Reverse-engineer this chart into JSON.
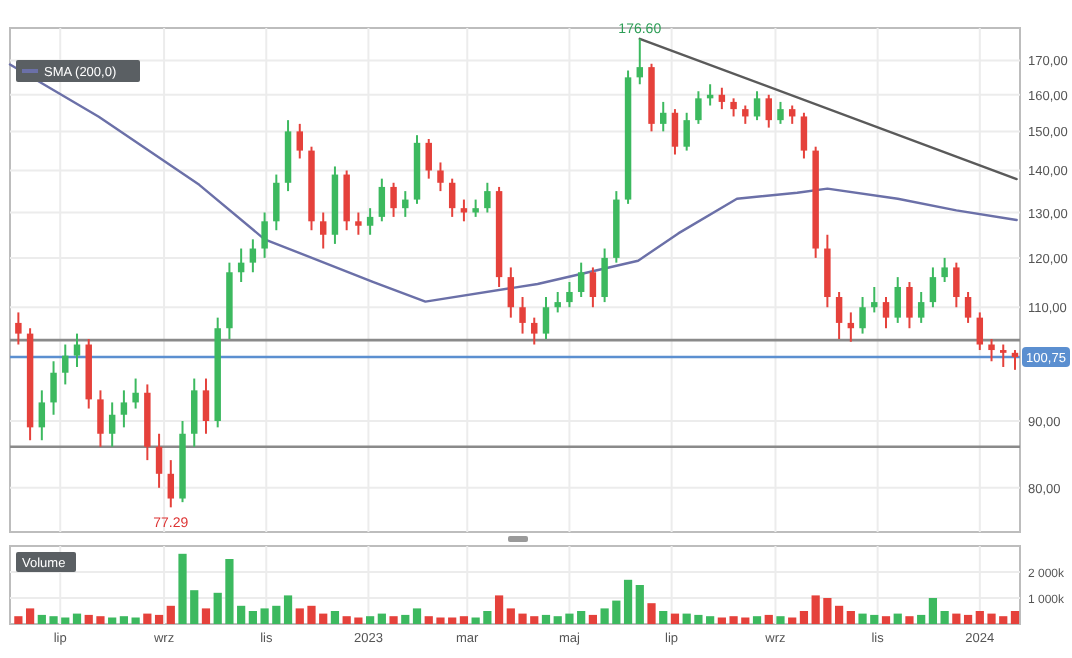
{
  "chart_data": [
    {
      "type": "candlestick",
      "log": true,
      "grid": true,
      "legend": "top left",
      "tick_labels": "y",
      "xlim": [
        "2022-06-01",
        "2024-01-25"
      ],
      "ylim": [
        74,
        180
      ],
      "yticks": [
        {
          "value": 80,
          "label": "80,00"
        },
        {
          "value": 90,
          "label": "90,00"
        },
        {
          "value": 110,
          "label": "110,00"
        },
        {
          "value": 120,
          "label": "120,00"
        },
        {
          "value": 130,
          "label": "130,00"
        },
        {
          "value": 140,
          "label": "140,00"
        },
        {
          "value": 150,
          "label": "150,00"
        },
        {
          "value": 160,
          "label": "160,00"
        },
        {
          "value": 170,
          "label": "170,00"
        }
      ],
      "xticks": [
        {
          "value": "2022-07-01",
          "label": null
        },
        {
          "value": "2022-09-01",
          "label": null
        },
        {
          "value": "2022-11-01",
          "label": null
        },
        {
          "value": "2023-01-01",
          "label": null
        },
        {
          "value": "2023-03-01",
          "label": null
        },
        {
          "value": "2023-05-01",
          "label": null
        },
        {
          "value": "2023-07-01",
          "label": null
        },
        {
          "value": "2023-09-01",
          "label": null
        },
        {
          "value": "2023-11-01",
          "label": null
        },
        {
          "value": "2024-01-01",
          "label": null
        }
      ],
      "colors": [
        "#e5413b",
        "#e5413b",
        "#3cb95f",
        "#3cb95f",
        "#3cb95f",
        "#3cb95f",
        "#e5413b",
        "#e5413b",
        "#3cb95f",
        "#3cb95f",
        "#3cb95f",
        "#e5413b",
        "#e5413b",
        "#e5413b",
        "#3cb95f",
        "#3cb95f",
        "#e5413b",
        "#3cb95f",
        "#3cb95f",
        "#3cb95f",
        "#3cb95f",
        "#3cb95f",
        "#3cb95f",
        "#3cb95f",
        "#e5413b",
        "#e5413b",
        "#e5413b",
        "#3cb95f",
        "#e5413b",
        "#e5413b",
        "#3cb95f",
        "#3cb95f",
        "#e5413b",
        "#3cb95f",
        "#3cb95f",
        "#e5413b",
        "#e5413b",
        "#e5413b",
        "#e5413b",
        "#3cb95f",
        "#3cb95f",
        "#e5413b",
        "#e5413b",
        "#e5413b",
        "#e5413b",
        "#3cb95f",
        "#3cb95f",
        "#3cb95f",
        "#3cb95f",
        "#e5413b",
        "#3cb95f",
        "#3cb95f",
        "#3cb95f",
        "#3cb95f",
        "#e5413b",
        "#3cb95f",
        "#e5413b",
        "#3cb95f",
        "#3cb95f",
        "#3cb95f",
        "#e5413b",
        "#e5413b",
        "#e5413b",
        "#3cb95f",
        "#e5413b",
        "#3cb95f",
        "#e5413b",
        "#e5413b",
        "#e5413b",
        "#e5413b",
        "#e5413b",
        "#e5413b",
        "#3cb95f",
        "#3cb95f",
        "#e5413b",
        "#3cb95f",
        "#e5413b",
        "#3cb95f",
        "#3cb95f",
        "#3cb95f",
        "#e5413b",
        "#e5413b",
        "#e5413b",
        "#e5413b",
        "#e5413b",
        "#e5413b"
      ],
      "x": [
        "2022-06-06",
        "2022-06-13",
        "2022-06-20",
        "2022-06-27",
        "2022-07-04",
        "2022-07-11",
        "2022-07-18",
        "2022-07-25",
        "2022-08-01",
        "2022-08-08",
        "2022-08-15",
        "2022-08-22",
        "2022-08-29",
        "2022-09-05",
        "2022-09-12",
        "2022-09-19",
        "2022-09-26",
        "2022-10-03",
        "2022-10-10",
        "2022-10-17",
        "2022-10-24",
        "2022-10-31",
        "2022-11-07",
        "2022-11-14",
        "2022-11-21",
        "2022-11-28",
        "2022-12-05",
        "2022-12-12",
        "2022-12-19",
        "2022-12-26",
        "2023-01-02",
        "2023-01-09",
        "2023-01-16",
        "2023-01-23",
        "2023-01-30",
        "2023-02-06",
        "2023-02-13",
        "2023-02-20",
        "2023-02-27",
        "2023-03-06",
        "2023-03-13",
        "2023-03-20",
        "2023-03-27",
        "2023-04-03",
        "2023-04-10",
        "2023-04-17",
        "2023-04-24",
        "2023-05-01",
        "2023-05-08",
        "2023-05-15",
        "2023-05-22",
        "2023-05-29",
        "2023-06-05",
        "2023-06-12",
        "2023-06-19",
        "2023-06-26",
        "2023-07-03",
        "2023-07-10",
        "2023-07-17",
        "2023-07-24",
        "2023-07-31",
        "2023-08-07",
        "2023-08-14",
        "2023-08-21",
        "2023-08-28",
        "2023-09-04",
        "2023-09-11",
        "2023-09-18",
        "2023-09-25",
        "2023-10-02",
        "2023-10-09",
        "2023-10-16",
        "2023-10-23",
        "2023-10-30",
        "2023-11-06",
        "2023-11-13",
        "2023-11-20",
        "2023-11-27",
        "2023-12-04",
        "2023-12-11",
        "2023-12-18",
        "2023-12-25",
        "2024-01-01",
        "2024-01-08",
        "2024-01-15",
        "2024-01-22"
      ],
      "ohlc": [
        [
          107,
          109,
          103,
          105
        ],
        [
          105,
          106,
          87,
          89
        ],
        [
          89,
          95,
          87,
          93
        ],
        [
          93,
          100,
          91,
          98
        ],
        [
          98,
          103,
          96,
          101
        ],
        [
          101,
          105,
          99,
          103
        ],
        [
          103,
          104,
          92,
          93.5
        ],
        [
          93.5,
          95,
          86,
          88
        ],
        [
          88,
          93,
          86,
          91
        ],
        [
          91,
          95,
          89,
          93
        ],
        [
          93,
          97,
          92,
          94.6
        ],
        [
          94.6,
          96,
          84,
          86
        ],
        [
          86,
          88,
          80,
          82
        ],
        [
          82,
          84,
          77.29,
          78.5
        ],
        [
          78.5,
          90,
          78,
          88
        ],
        [
          88,
          97,
          86,
          95
        ],
        [
          95,
          97,
          88,
          90
        ],
        [
          90,
          108,
          89,
          106
        ],
        [
          106,
          119,
          104,
          117
        ],
        [
          117,
          122,
          115,
          119
        ],
        [
          119,
          124,
          117,
          122
        ],
        [
          122,
          130,
          120,
          128
        ],
        [
          128,
          139,
          126,
          137
        ],
        [
          137,
          153,
          135,
          150
        ],
        [
          150,
          152,
          143,
          145
        ],
        [
          145,
          146,
          126,
          128
        ],
        [
          128,
          130,
          122,
          125
        ],
        [
          125,
          141,
          123,
          139
        ],
        [
          139,
          140,
          126,
          128
        ],
        [
          128,
          130,
          125,
          127
        ],
        [
          127,
          131,
          125,
          129
        ],
        [
          129,
          138,
          128,
          136
        ],
        [
          136,
          137,
          129,
          131
        ],
        [
          131,
          135,
          129,
          133
        ],
        [
          133,
          149,
          132,
          147
        ],
        [
          147,
          148,
          138,
          140
        ],
        [
          140,
          142,
          135,
          137
        ],
        [
          137,
          138,
          129,
          131
        ],
        [
          131,
          133,
          128,
          130
        ],
        [
          130,
          133,
          129,
          131
        ],
        [
          131,
          137,
          130,
          135
        ],
        [
          135,
          136,
          114,
          116
        ],
        [
          116,
          118,
          108,
          110
        ],
        [
          110,
          112,
          105,
          107
        ],
        [
          107,
          108,
          103,
          105
        ],
        [
          105,
          112,
          104,
          110
        ],
        [
          110,
          113,
          109,
          111
        ],
        [
          111,
          115,
          110,
          113
        ],
        [
          113,
          119,
          112,
          117
        ],
        [
          117,
          118,
          110,
          112
        ],
        [
          112,
          122,
          111,
          120
        ],
        [
          120,
          135,
          119,
          133
        ],
        [
          133,
          167,
          132,
          165
        ],
        [
          165,
          176.6,
          163,
          168
        ],
        [
          168,
          169,
          150,
          152
        ],
        [
          152,
          158,
          150,
          155
        ],
        [
          155,
          156,
          144,
          146
        ],
        [
          146,
          155,
          145,
          153
        ],
        [
          153,
          161,
          152,
          159
        ],
        [
          159,
          163,
          157,
          160
        ],
        [
          160,
          162,
          156,
          158
        ],
        [
          158,
          159,
          154,
          156
        ],
        [
          156,
          157,
          152,
          154
        ],
        [
          154,
          161,
          153,
          159
        ],
        [
          159,
          160,
          151,
          153
        ],
        [
          153,
          158,
          152,
          156
        ],
        [
          156,
          157,
          152,
          154
        ],
        [
          154,
          155,
          143,
          145
        ],
        [
          145,
          146,
          120,
          122
        ],
        [
          122,
          125,
          110,
          112
        ],
        [
          112,
          113,
          104,
          107
        ],
        [
          107,
          109,
          103.5,
          106
        ],
        [
          106,
          112,
          105,
          110
        ],
        [
          110,
          114,
          109,
          111
        ],
        [
          111,
          112,
          106,
          108
        ],
        [
          108,
          116,
          107,
          114
        ],
        [
          114,
          115,
          106,
          108
        ],
        [
          108,
          113,
          107,
          111
        ],
        [
          111,
          118,
          110,
          116
        ],
        [
          116,
          120,
          115,
          118
        ],
        [
          118,
          119,
          110,
          112
        ],
        [
          112,
          113,
          107,
          108
        ],
        [
          108,
          109,
          102,
          103
        ],
        [
          103,
          104,
          100,
          102
        ],
        [
          102,
          103,
          99,
          101.5
        ],
        [
          101.5,
          102,
          98.5,
          100.75
        ]
      ],
      "series": [
        {
          "type": "line",
          "name": "SMA (200,0)",
          "color": "#6b70a8",
          "x": [
            "2022-06-01",
            "2022-07-24",
            "2022-09-22",
            "2022-10-31",
            "2023-01-04",
            "2023-02-04",
            "2023-04-12",
            "2023-06-11",
            "2023-07-05",
            "2023-08-09",
            "2023-09-14",
            "2023-10-02",
            "2023-11-13",
            "2023-12-18",
            "2024-01-23"
          ],
          "values": [
            168.8,
            153.9,
            136.5,
            124,
            115,
            111.1,
            114.6,
            119.4,
            125.3,
            133.2,
            134.6,
            135.6,
            133.2,
            130.5,
            128.3
          ]
        },
        {
          "type": "line",
          "color": "#5a5a5a",
          "x": [
            "2023-06-12",
            "2024-01-23"
          ],
          "values": [
            176.6,
            137.9
          ]
        }
      ],
      "ref_lines": [
        {
          "axis": "y",
          "value": 103.8,
          "color": "#8a8a8a"
        },
        {
          "axis": "y",
          "value": 86,
          "color": "#8a8a8a"
        },
        {
          "axis": "y",
          "value": 100.75,
          "label": "100,75",
          "color": "#5b8fd0"
        }
      ],
      "annotations": [
        {
          "text": "176.60",
          "x": "2023-06-12",
          "y": 176.6
        },
        {
          "text": "77.29",
          "x": "2022-09-05",
          "y": 77.29
        }
      ]
    },
    {
      "type": "bar",
      "title": "Volume",
      "grid": true,
      "xlim": [
        "2022-06-01",
        "2024-01-25"
      ],
      "ylim": [
        0,
        3000
      ],
      "yticks": [
        {
          "value": 1000,
          "label": "1 000k"
        },
        {
          "value": 2000,
          "label": "2 000k"
        }
      ],
      "xticks": [
        {
          "value": "2022-07-01",
          "label": "lip"
        },
        {
          "value": "2022-09-01",
          "label": "wrz"
        },
        {
          "value": "2022-11-01",
          "label": "lis"
        },
        {
          "value": "2023-01-01",
          "label": "2023"
        },
        {
          "value": "2023-03-01",
          "label": "mar"
        },
        {
          "value": "2023-05-01",
          "label": "maj"
        },
        {
          "value": "2023-07-01",
          "label": "lip"
        },
        {
          "value": "2023-09-01",
          "label": "wrz"
        },
        {
          "value": "2023-11-01",
          "label": "lis"
        },
        {
          "value": "2024-01-01",
          "label": "2024"
        }
      ],
      "x": [
        "2022-06-06",
        "2022-06-13",
        "2022-06-20",
        "2022-06-27",
        "2022-07-04",
        "2022-07-11",
        "2022-07-18",
        "2022-07-25",
        "2022-08-01",
        "2022-08-08",
        "2022-08-15",
        "2022-08-22",
        "2022-08-29",
        "2022-09-05",
        "2022-09-12",
        "2022-09-19",
        "2022-09-26",
        "2022-10-03",
        "2022-10-10",
        "2022-10-17",
        "2022-10-24",
        "2022-10-31",
        "2022-11-07",
        "2022-11-14",
        "2022-11-21",
        "2022-11-28",
        "2022-12-05",
        "2022-12-12",
        "2022-12-19",
        "2022-12-26",
        "2023-01-02",
        "2023-01-09",
        "2023-01-16",
        "2023-01-23",
        "2023-01-30",
        "2023-02-06",
        "2023-02-13",
        "2023-02-20",
        "2023-02-27",
        "2023-03-06",
        "2023-03-13",
        "2023-03-20",
        "2023-03-27",
        "2023-04-03",
        "2023-04-10",
        "2023-04-17",
        "2023-04-24",
        "2023-05-01",
        "2023-05-08",
        "2023-05-15",
        "2023-05-22",
        "2023-05-29",
        "2023-06-05",
        "2023-06-12",
        "2023-06-19",
        "2023-06-26",
        "2023-07-03",
        "2023-07-10",
        "2023-07-17",
        "2023-07-24",
        "2023-07-31",
        "2023-08-07",
        "2023-08-14",
        "2023-08-21",
        "2023-08-28",
        "2023-09-04",
        "2023-09-11",
        "2023-09-18",
        "2023-09-25",
        "2023-10-02",
        "2023-10-09",
        "2023-10-16",
        "2023-10-23",
        "2023-10-30",
        "2023-11-06",
        "2023-11-13",
        "2023-11-20",
        "2023-11-27",
        "2023-12-04",
        "2023-12-11",
        "2023-12-18",
        "2023-12-25",
        "2024-01-01",
        "2024-01-08",
        "2024-01-15",
        "2024-01-22"
      ],
      "values": [
        300,
        600,
        350,
        300,
        250,
        400,
        350,
        300,
        250,
        300,
        250,
        400,
        350,
        700,
        2700,
        1300,
        600,
        1200,
        2500,
        700,
        500,
        600,
        700,
        1100,
        600,
        700,
        400,
        500,
        300,
        250,
        300,
        400,
        300,
        350,
        600,
        300,
        250,
        250,
        300,
        250,
        500,
        1100,
        600,
        400,
        300,
        350,
        300,
        400,
        500,
        350,
        600,
        900,
        1700,
        1500,
        800,
        500,
        400,
        400,
        350,
        300,
        250,
        300,
        250,
        300,
        350,
        300,
        250,
        500,
        1100,
        1000,
        700,
        500,
        400,
        350,
        300,
        400,
        300,
        350,
        1000,
        500,
        400,
        350,
        500,
        400,
        300,
        500
      ],
      "colors": [
        "#e5413b",
        "#e5413b",
        "#3cb95f",
        "#3cb95f",
        "#3cb95f",
        "#3cb95f",
        "#e5413b",
        "#e5413b",
        "#3cb95f",
        "#3cb95f",
        "#3cb95f",
        "#e5413b",
        "#e5413b",
        "#e5413b",
        "#3cb95f",
        "#3cb95f",
        "#e5413b",
        "#3cb95f",
        "#3cb95f",
        "#3cb95f",
        "#3cb95f",
        "#3cb95f",
        "#3cb95f",
        "#3cb95f",
        "#e5413b",
        "#e5413b",
        "#e5413b",
        "#3cb95f",
        "#e5413b",
        "#e5413b",
        "#3cb95f",
        "#3cb95f",
        "#e5413b",
        "#3cb95f",
        "#3cb95f",
        "#e5413b",
        "#e5413b",
        "#e5413b",
        "#e5413b",
        "#3cb95f",
        "#3cb95f",
        "#e5413b",
        "#e5413b",
        "#e5413b",
        "#e5413b",
        "#3cb95f",
        "#3cb95f",
        "#3cb95f",
        "#3cb95f",
        "#e5413b",
        "#3cb95f",
        "#3cb95f",
        "#3cb95f",
        "#3cb95f",
        "#e5413b",
        "#3cb95f",
        "#e5413b",
        "#3cb95f",
        "#3cb95f",
        "#3cb95f",
        "#e5413b",
        "#e5413b",
        "#e5413b",
        "#3cb95f",
        "#e5413b",
        "#3cb95f",
        "#e5413b",
        "#e5413b",
        "#e5413b",
        "#e5413b",
        "#e5413b",
        "#e5413b",
        "#3cb95f",
        "#3cb95f",
        "#e5413b",
        "#3cb95f",
        "#e5413b",
        "#3cb95f",
        "#3cb95f",
        "#3cb95f",
        "#e5413b",
        "#e5413b",
        "#e5413b",
        "#e5413b",
        "#e5413b",
        "#e5413b"
      ]
    }
  ]
}
